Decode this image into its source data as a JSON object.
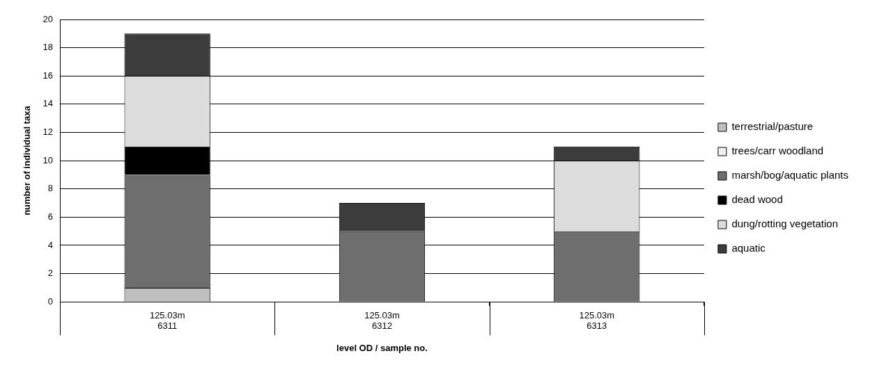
{
  "chart_data": {
    "type": "bar",
    "stacked": true,
    "ylabel": "number of individual taxa",
    "xlabel": "level OD / sample no.",
    "categories": [
      "125.03m\n6311",
      "125.03m\n6312",
      "125.03m\n6313"
    ],
    "series": [
      {
        "name": "terrestrial/pasture",
        "color": "#bfbfbf",
        "values": [
          1,
          0,
          0
        ]
      },
      {
        "name": "trees/carr woodland",
        "color": "#f0f0f0",
        "values": [
          0,
          0,
          0
        ]
      },
      {
        "name": "marsh/bog/aquatic plants",
        "color": "#6e6e6e",
        "values": [
          8,
          5,
          5
        ]
      },
      {
        "name": "dead wood",
        "color": "#000000",
        "values": [
          2,
          0,
          0
        ]
      },
      {
        "name": "dung/rotting vegetation",
        "color": "#dcdcdc",
        "values": [
          5,
          0,
          5
        ]
      },
      {
        "name": "aquatic",
        "color": "#3c3c3c",
        "values": [
          3,
          2,
          1
        ]
      }
    ],
    "ylim": [
      0,
      20
    ],
    "yticks": [
      0,
      2,
      4,
      6,
      8,
      10,
      12,
      14,
      16,
      18,
      20
    ],
    "grid": "y",
    "legend": "right"
  }
}
